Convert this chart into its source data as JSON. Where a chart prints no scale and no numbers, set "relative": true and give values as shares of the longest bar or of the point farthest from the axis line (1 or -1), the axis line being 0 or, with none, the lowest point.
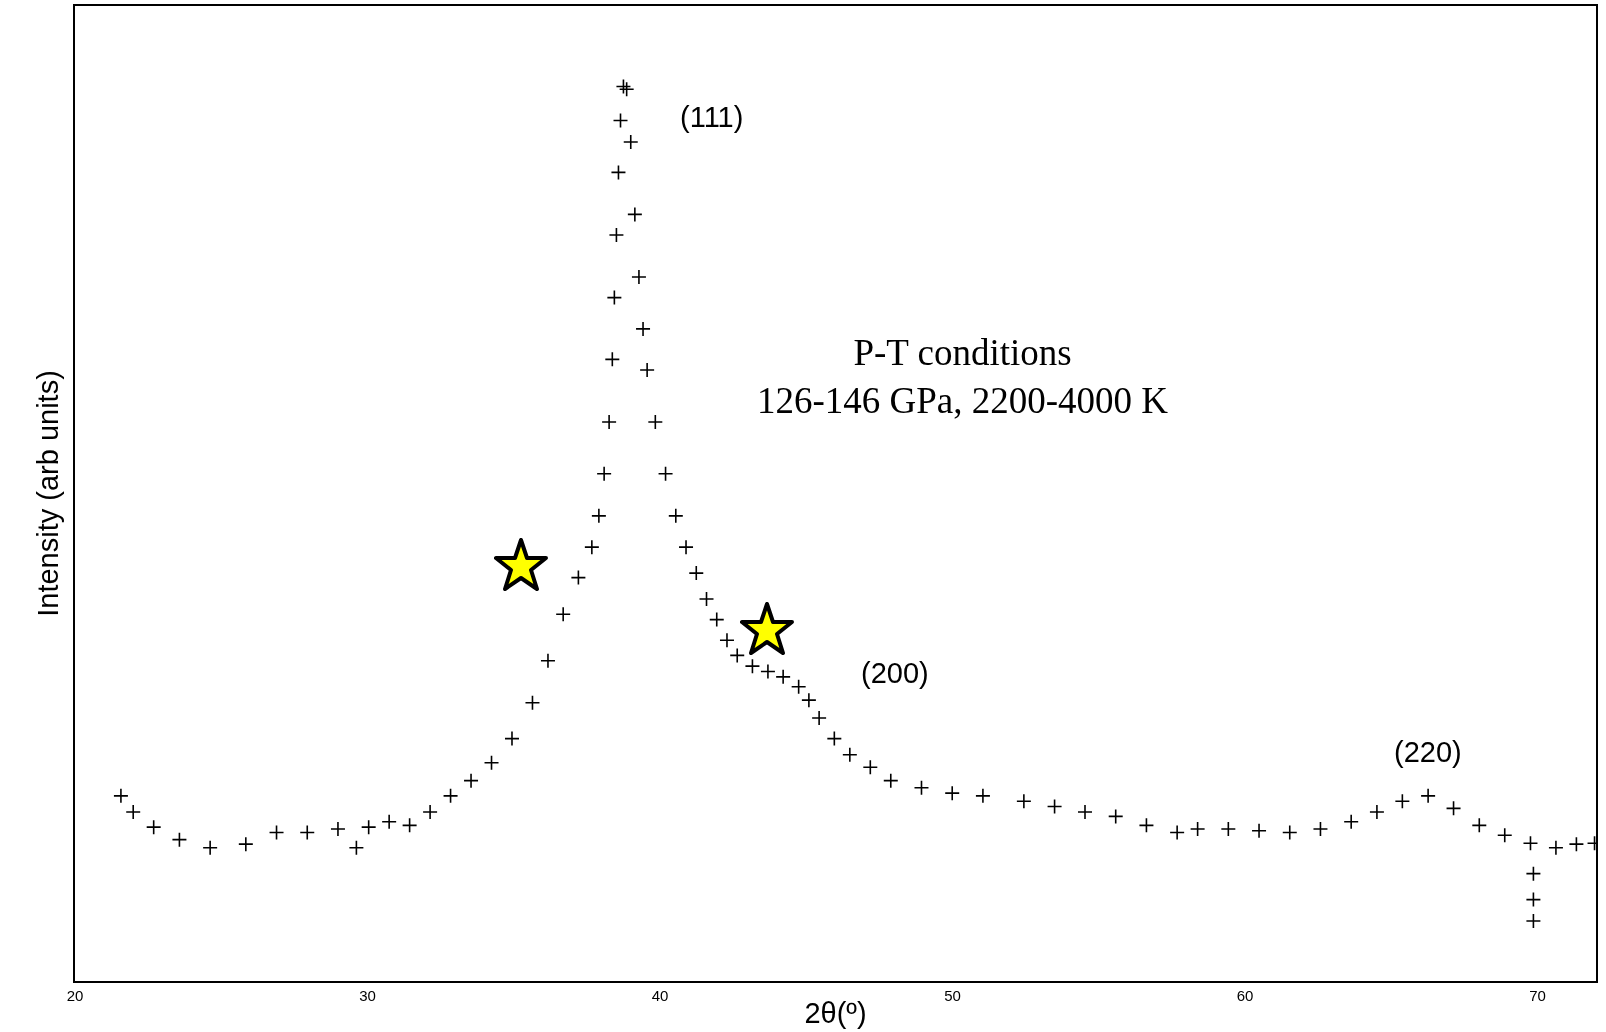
{
  "chart_data": {
    "type": "scatter",
    "relative": true,
    "xlabel": "2θ(º)",
    "ylabel": "Intensity (arb units)",
    "xlim": [
      20,
      72
    ],
    "xticks": [
      20,
      30,
      40,
      50,
      60,
      70
    ],
    "grid": false,
    "marker": "cross",
    "annotations": [
      {
        "text": "(111)",
        "x": 38.75,
        "y": 1.0
      },
      {
        "text": "(200)",
        "x": 44.74,
        "y": 0.329
      },
      {
        "text": "(220)",
        "x": 66.26,
        "y": 0.207
      },
      "P-T conditions\n126-146 GPa, 2200-4000 K"
    ],
    "series": [
      {
        "color": "#000000",
        "x": [
          21.57,
          21.99,
          22.69,
          23.57,
          24.62,
          25.84,
          26.89,
          27.94,
          28.99,
          29.62,
          30.04,
          30.74,
          31.44,
          32.14,
          32.84,
          33.54,
          34.24,
          34.94,
          35.64,
          36.17,
          36.69,
          37.21,
          37.67,
          37.91,
          38.09,
          38.26,
          38.37,
          38.44,
          38.51,
          38.58,
          38.65,
          38.75,
          38.86,
          39.0,
          39.14,
          39.28,
          39.42,
          39.56,
          39.84,
          40.19,
          40.54,
          40.89,
          41.24,
          41.59,
          41.94,
          42.29,
          42.64,
          43.16,
          43.69,
          44.21,
          44.74,
          45.09,
          45.44,
          45.96,
          46.49,
          47.19,
          47.89,
          48.94,
          49.99,
          51.04,
          52.44,
          53.49,
          54.53,
          55.58,
          56.63,
          57.68,
          58.38,
          59.43,
          60.48,
          61.53,
          62.58,
          63.63,
          64.51,
          65.38,
          66.26,
          67.13,
          68.01,
          68.88,
          69.76,
          69.86,
          69.86,
          69.86,
          70.63,
          71.33,
          71.95
        ],
        "values": [
          0.207,
          0.189,
          0.172,
          0.158,
          0.149,
          0.153,
          0.166,
          0.166,
          0.17,
          0.149,
          0.172,
          0.178,
          0.174,
          0.189,
          0.207,
          0.224,
          0.244,
          0.271,
          0.311,
          0.358,
          0.41,
          0.451,
          0.485,
          0.52,
          0.567,
          0.625,
          0.695,
          0.764,
          0.834,
          0.904,
          0.962,
          1.0,
          0.997,
          0.938,
          0.857,
          0.787,
          0.729,
          0.683,
          0.625,
          0.567,
          0.52,
          0.485,
          0.456,
          0.427,
          0.404,
          0.381,
          0.364,
          0.352,
          0.346,
          0.34,
          0.329,
          0.314,
          0.294,
          0.271,
          0.253,
          0.239,
          0.224,
          0.216,
          0.21,
          0.207,
          0.201,
          0.195,
          0.189,
          0.184,
          0.174,
          0.166,
          0.17,
          0.17,
          0.168,
          0.166,
          0.17,
          0.178,
          0.189,
          0.201,
          0.207,
          0.193,
          0.174,
          0.163,
          0.154,
          0.12,
          0.091,
          0.067,
          0.149,
          0.153,
          0.154
        ]
      }
    ]
  }
}
